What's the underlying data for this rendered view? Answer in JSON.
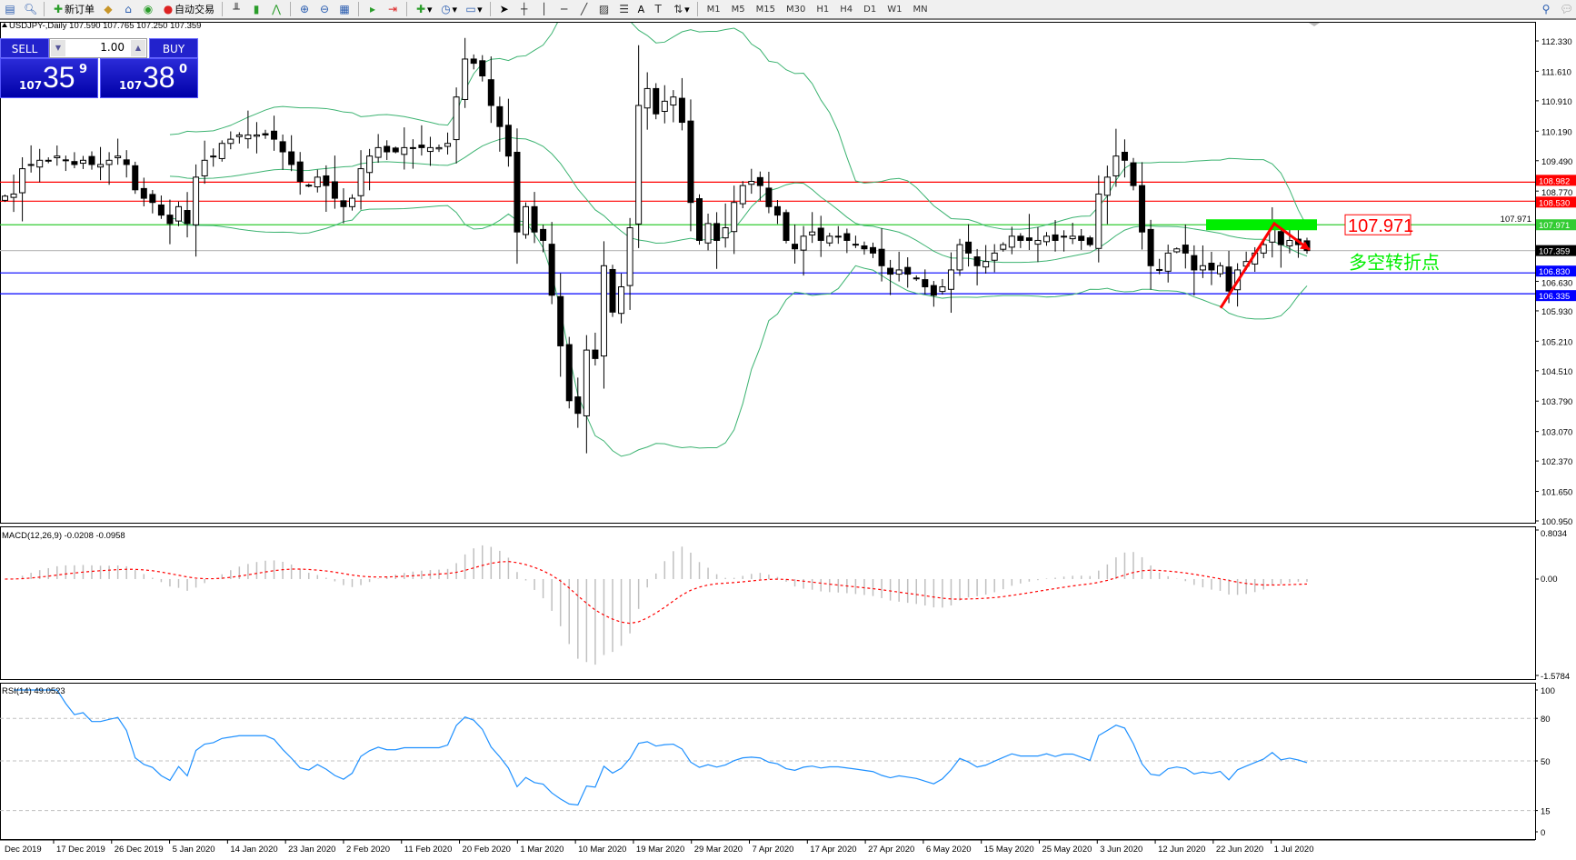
{
  "toolbar": {
    "new_order": "新订单",
    "auto_trading": "自动交易",
    "timeframes": [
      "M1",
      "M5",
      "M15",
      "M30",
      "H1",
      "H4",
      "D1",
      "W1",
      "MN"
    ],
    "text_tool": "A"
  },
  "chart": {
    "header": "USDJPY-,Daily  107.590 107.765 107.250 107.359",
    "symbol": "USDJPY-",
    "period": "Daily",
    "ohlc": [
      "107.590",
      "107.765",
      "107.250",
      "107.359"
    ]
  },
  "one_click": {
    "sell_label": "SELL",
    "buy_label": "BUY",
    "lot": "1.00",
    "sell_price": {
      "prefix": "107",
      "big": "35",
      "sup": "9"
    },
    "buy_price": {
      "prefix": "107",
      "big": "38",
      "sup": "0"
    }
  },
  "annotations": {
    "price_box": "107.971",
    "reversal_text": "多空转折点",
    "colors": {
      "box": "#ff0000",
      "text": "#00ee00",
      "zone": "#00ee00",
      "arrow": "#ff0000"
    }
  },
  "chart_data": {
    "type": "candlestick",
    "price_axis": {
      "min": 100.95,
      "max": 112.33,
      "ticks": [
        "112.330",
        "111.610",
        "110.910",
        "110.190",
        "109.490",
        "108.770",
        "107.971",
        "106.630",
        "105.930",
        "105.210",
        "104.510",
        "103.790",
        "103.070",
        "102.370",
        "101.650",
        "100.950"
      ]
    },
    "closes": [
      108.65,
      108.7,
      109.3,
      109.4,
      109.5,
      109.5,
      109.6,
      109.5,
      109.4,
      109.5,
      109.4,
      109.4,
      109.5,
      109.6,
      109.4,
      108.8,
      108.6,
      108.5,
      108.2,
      108.0,
      108.4,
      108.0,
      109.1,
      109.5,
      109.6,
      109.9,
      110.0,
      110.1,
      110.1,
      110.1,
      110.1,
      110.0,
      109.7,
      109.4,
      109.0,
      108.9,
      109.1,
      108.9,
      108.6,
      108.4,
      108.6,
      109.3,
      109.6,
      109.8,
      109.7,
      109.7,
      109.8,
      109.8,
      109.8,
      109.8,
      109.8,
      109.9,
      111.0,
      111.9,
      111.8,
      111.5,
      110.8,
      110.3,
      109.6,
      107.8,
      108.4,
      107.8,
      107.6,
      106.3,
      105.1,
      103.8,
      103.5,
      105.0,
      104.8,
      107.0,
      105.9,
      106.5,
      107.9,
      110.8,
      111.2,
      110.6,
      110.9,
      111.0,
      110.4,
      108.5,
      107.6,
      108.0,
      107.6,
      107.9,
      108.5,
      108.9,
      109.0,
      108.9,
      108.4,
      108.2,
      107.6,
      107.4,
      107.7,
      107.8,
      107.6,
      107.7,
      107.7,
      107.6,
      107.5,
      107.4,
      107.3,
      107.0,
      106.8,
      106.9,
      106.8,
      106.7,
      106.5,
      106.3,
      106.5,
      106.9,
      107.5,
      107.3,
      107.0,
      107.1,
      107.3,
      107.5,
      107.7,
      107.6,
      107.6,
      107.6,
      107.7,
      107.6,
      107.7,
      107.7,
      107.6,
      107.5,
      108.7,
      109.1,
      109.6,
      109.5,
      108.9,
      107.8,
      107.0,
      106.9,
      107.3,
      107.4,
      107.3,
      106.9,
      107.0,
      106.9,
      107.0,
      106.4,
      106.9,
      107.1,
      107.3,
      107.5,
      107.9,
      107.5,
      107.6,
      107.5,
      107.359
    ],
    "hlines": [
      {
        "price": 108.982,
        "label": "108.982",
        "color": "#ff0000"
      },
      {
        "price": 108.53,
        "label": "108.530",
        "color": "#ff0000"
      },
      {
        "price": 107.971,
        "label": "107.971",
        "color": "#33cc33"
      },
      {
        "price": 107.359,
        "label": "107.359",
        "color": "#000000",
        "line": "#c0c0c0"
      },
      {
        "price": 106.83,
        "label": "106.830",
        "color": "#0000ff"
      },
      {
        "price": 106.335,
        "label": "106.335",
        "color": "#0000ff"
      }
    ],
    "bollinger_color": "#3cb371",
    "macd": {
      "label": "MACD(12,26,9) -0.0208 -0.0958",
      "max": 0.8034,
      "min": -1.5784,
      "ticks": [
        "0.8034",
        "0.00",
        "-1.5784"
      ],
      "signal_color": "#ff0000",
      "hist_color": "#c0c0c0"
    },
    "rsi": {
      "label": "RSI(14) 49.0523",
      "ticks": [
        "100",
        "80",
        "50",
        "15",
        "0"
      ],
      "levels": [
        80,
        50,
        15
      ],
      "color": "#1e90ff"
    },
    "date_labels": [
      "Dec 2019",
      "17 Dec 2019",
      "26 Dec 2019",
      "5 Jan 2020",
      "14 Jan 2020",
      "23 Jan 2020",
      "2 Feb 2020",
      "11 Feb 2020",
      "20 Feb 2020",
      "1 Mar 2020",
      "10 Mar 2020",
      "19 Mar 2020",
      "29 Mar 2020",
      "7 Apr 2020",
      "17 Apr 2020",
      "27 Apr 2020",
      "6 May 2020",
      "15 May 2020",
      "25 May 2020",
      "3 Jun 2020",
      "12 Jun 2020",
      "22 Jun 2020",
      "1 Jul 2020"
    ]
  }
}
